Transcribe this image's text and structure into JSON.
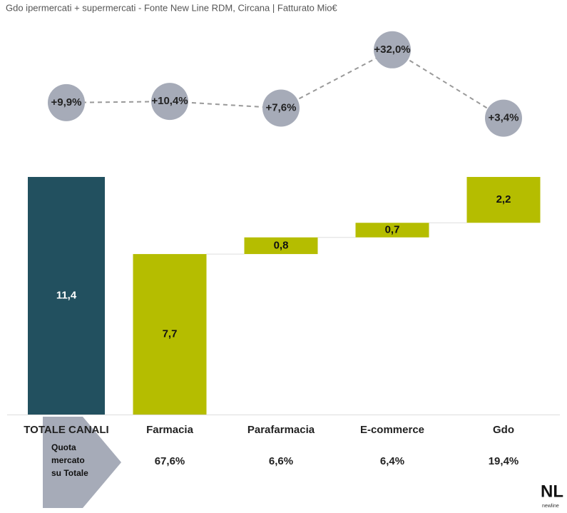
{
  "chart_data": {
    "type": "waterfall",
    "title": "Gdo ipermercati + supermercati - Fonte New Line RDM, Circana | Fatturato Mio€",
    "categories": [
      "TOTALE CANALI",
      "Farmacia",
      "Parafarmacia",
      "E-commerce",
      "Gdo"
    ],
    "values": [
      11.4,
      7.7,
      0.8,
      0.7,
      2.2
    ],
    "value_labels": [
      "11,4",
      "7,7",
      "0,8",
      "0,7",
      "2,2"
    ],
    "total_color": "#22505f",
    "color": "#b5bd00",
    "growth": {
      "values": [
        9.9,
        10.4,
        7.6,
        32.0,
        3.4
      ],
      "value_labels": [
        "+9,9%",
        "+10,4%",
        "+7,6%",
        "+32,0%",
        "+3,4%"
      ],
      "color": "#a6abb8"
    },
    "share": {
      "label_lines": [
        "Quota",
        "mercato",
        "su Totale"
      ],
      "values": [
        null,
        67.6,
        6.6,
        6.4,
        19.4
      ],
      "value_labels": [
        null,
        "67,6%",
        "6,6%",
        "6,4%",
        "19,4%"
      ]
    }
  },
  "logo": {
    "text": "NL",
    "subtext": "newline"
  }
}
